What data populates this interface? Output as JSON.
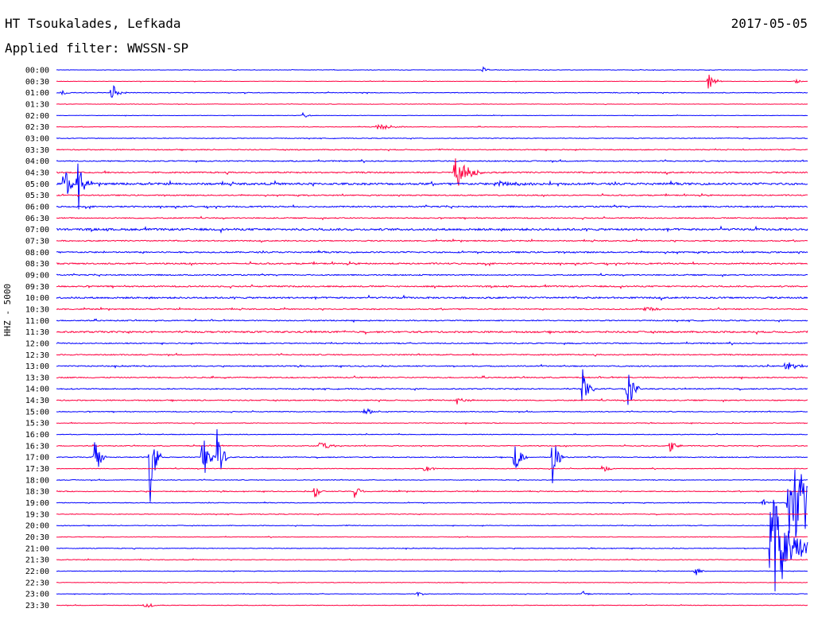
{
  "header": {
    "station": "HT Tsoukalades, Lefkada",
    "date": "2017-05-05",
    "filter": "Applied filter: WWSSN-SP"
  },
  "chart_data": {
    "type": "line",
    "title": "HT Tsoukalades, Lefkada",
    "subtitle": "Applied filter: WWSSN-SP",
    "date": "2017-05-05",
    "ylabel": "HHZ - 5000",
    "row_interval_minutes": 30,
    "row_labels": [
      "00:00",
      "00:30",
      "01:00",
      "01:30",
      "02:00",
      "02:30",
      "03:00",
      "03:30",
      "04:00",
      "04:30",
      "05:00",
      "05:30",
      "06:00",
      "06:30",
      "07:00",
      "07:30",
      "08:00",
      "08:30",
      "09:00",
      "09:30",
      "10:00",
      "10:30",
      "11:00",
      "11:30",
      "12:00",
      "12:30",
      "13:00",
      "13:30",
      "14:00",
      "14:30",
      "15:00",
      "15:30",
      "16:00",
      "16:30",
      "17:00",
      "17:30",
      "18:00",
      "18:30",
      "19:00",
      "19:30",
      "20:00",
      "20:30",
      "21:00",
      "21:30",
      "22:00",
      "22:30",
      "23:00",
      "23:30"
    ],
    "series_colors": [
      "#0000ff",
      "#ff0040"
    ],
    "noise_level": [
      0.3,
      0.3,
      0.5,
      0.3,
      0.3,
      0.4,
      0.5,
      0.7,
      0.8,
      1.0,
      1.5,
      0.8,
      1.0,
      0.8,
      1.5,
      0.8,
      1.0,
      1.0,
      0.8,
      1.0,
      1.2,
      0.8,
      0.8,
      1.2,
      0.8,
      0.8,
      0.8,
      0.8,
      0.8,
      0.8,
      0.6,
      0.5,
      0.5,
      0.6,
      0.6,
      0.5,
      0.5,
      0.6,
      0.5,
      0.5,
      0.5,
      0.4,
      0.5,
      0.5,
      0.4,
      0.4,
      0.4,
      0.4
    ],
    "events": [
      {
        "row": 0,
        "minute": 17.0,
        "amp": 5,
        "dur": 0.6
      },
      {
        "row": 1,
        "minute": 26.0,
        "amp": 14,
        "dur": 0.6
      },
      {
        "row": 1,
        "minute": 29.5,
        "amp": 8,
        "dur": 0.3
      },
      {
        "row": 2,
        "minute": 0.2,
        "amp": 5,
        "dur": 0.4
      },
      {
        "row": 2,
        "minute": 2.2,
        "amp": 14,
        "dur": 0.6
      },
      {
        "row": 4,
        "minute": 9.8,
        "amp": 4,
        "dur": 0.5
      },
      {
        "row": 5,
        "minute": 12.8,
        "amp": 4,
        "dur": 1.5
      },
      {
        "row": 9,
        "minute": 15.9,
        "amp": 28,
        "dur": 1.2
      },
      {
        "row": 10,
        "minute": 0.3,
        "amp": 28,
        "dur": 0.6
      },
      {
        "row": 10,
        "minute": 0.8,
        "amp": 58,
        "dur": 0.5
      },
      {
        "row": 10,
        "minute": 17.5,
        "amp": 4,
        "dur": 3.0
      },
      {
        "row": 21,
        "minute": 23.5,
        "amp": 6,
        "dur": 0.8
      },
      {
        "row": 26,
        "minute": 29.1,
        "amp": 7,
        "dur": 1.2
      },
      {
        "row": 28,
        "minute": 21.0,
        "amp": 35,
        "dur": 0.5
      },
      {
        "row": 28,
        "minute": 22.8,
        "amp": 40,
        "dur": 0.5
      },
      {
        "row": 29,
        "minute": 16.0,
        "amp": 6,
        "dur": 0.8
      },
      {
        "row": 30,
        "minute": 12.3,
        "amp": 5,
        "dur": 1.0
      },
      {
        "row": 33,
        "minute": 10.5,
        "amp": 6,
        "dur": 1.0
      },
      {
        "row": 33,
        "minute": 24.5,
        "amp": 8,
        "dur": 0.5
      },
      {
        "row": 34,
        "minute": 1.5,
        "amp": 35,
        "dur": 0.5
      },
      {
        "row": 34,
        "minute": 3.7,
        "amp": 75,
        "dur": 0.5
      },
      {
        "row": 34,
        "minute": 5.8,
        "amp": 45,
        "dur": 0.5
      },
      {
        "row": 34,
        "minute": 6.4,
        "amp": 45,
        "dur": 0.5
      },
      {
        "row": 34,
        "minute": 18.3,
        "amp": 25,
        "dur": 0.5
      },
      {
        "row": 34,
        "minute": 19.8,
        "amp": 40,
        "dur": 0.5
      },
      {
        "row": 35,
        "minute": 14.7,
        "amp": 8,
        "dur": 0.6
      },
      {
        "row": 35,
        "minute": 21.8,
        "amp": 8,
        "dur": 0.5
      },
      {
        "row": 37,
        "minute": 10.3,
        "amp": 12,
        "dur": 0.5
      },
      {
        "row": 37,
        "minute": 11.9,
        "amp": 12,
        "dur": 0.5
      },
      {
        "row": 38,
        "minute": 28.2,
        "amp": 5,
        "dur": 0.5
      },
      {
        "row": 38,
        "minute": 29.2,
        "amp": 60,
        "dur": 4.0
      },
      {
        "row": 42,
        "minute": 28.5,
        "amp": 80,
        "dur": 2.0
      },
      {
        "row": 44,
        "minute": 25.5,
        "amp": 8,
        "dur": 0.5
      },
      {
        "row": 46,
        "minute": 14.4,
        "amp": 4,
        "dur": 0.5
      },
      {
        "row": 46,
        "minute": 21.0,
        "amp": 5,
        "dur": 0.5
      },
      {
        "row": 47,
        "minute": 3.5,
        "amp": 5,
        "dur": 0.8
      }
    ]
  }
}
